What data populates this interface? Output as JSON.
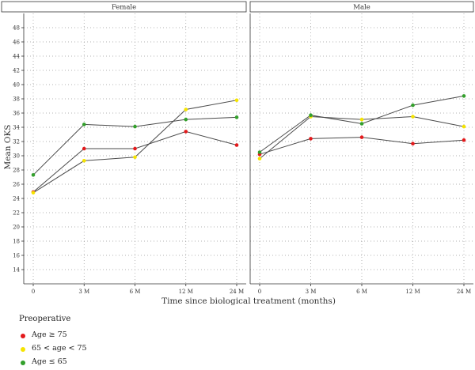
{
  "chart_data": {
    "type": "line",
    "ylabel": "Mean OKS",
    "xlabel": "Time since biological treatment (months)",
    "categories": [
      "0",
      "3 M",
      "6 M",
      "12 M",
      "24 M"
    ],
    "ylim": [
      12,
      50
    ],
    "yticks": [
      14,
      16,
      18,
      20,
      22,
      24,
      26,
      28,
      30,
      32,
      34,
      36,
      38,
      40,
      42,
      44,
      46,
      48
    ],
    "grid": true,
    "legend_title": "Preoperative",
    "legend_position": "bottom-left",
    "panels": [
      {
        "title": "Female",
        "series": [
          {
            "name": "Age ≥ 75",
            "color": "#e31a1c",
            "values": [
              24.9,
              31.0,
              31.0,
              33.4,
              31.5
            ]
          },
          {
            "name": "65 < age < 75",
            "color": "#f5e400",
            "values": [
              24.8,
              29.3,
              29.8,
              36.5,
              37.8
            ]
          },
          {
            "name": "Age ≤ 65",
            "color": "#33a02c",
            "values": [
              27.3,
              34.4,
              34.1,
              35.1,
              35.4
            ]
          }
        ]
      },
      {
        "title": "Male",
        "series": [
          {
            "name": "Age ≥ 75",
            "color": "#e31a1c",
            "values": [
              30.2,
              32.4,
              32.6,
              31.7,
              32.2
            ]
          },
          {
            "name": "65 < age < 75",
            "color": "#f5e400",
            "values": [
              29.6,
              35.5,
              35.1,
              35.5,
              34.1
            ]
          },
          {
            "name": "Age ≤ 65",
            "color": "#33a02c",
            "values": [
              30.5,
              35.7,
              34.5,
              37.1,
              38.4
            ]
          }
        ]
      }
    ]
  }
}
